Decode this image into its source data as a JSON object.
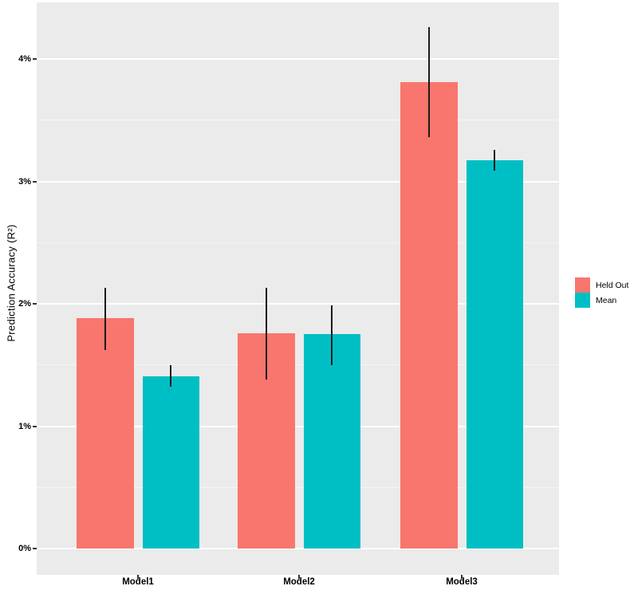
{
  "chart_data": {
    "type": "bar",
    "title": "",
    "xlabel": "",
    "ylabel": "Prediction Accuracy (R²)",
    "categories": [
      "Model1",
      "Model2",
      "Model3"
    ],
    "y_tick_labels": [
      "0%",
      "1%",
      "2%",
      "3%",
      "4%"
    ],
    "y_tick_values": [
      0,
      1,
      2,
      3,
      4
    ],
    "y_minor_values": [
      0.5,
      1.5,
      2.5,
      3.5
    ],
    "ylim": [
      0,
      4.47
    ],
    "grid": "white major and minor gridlines on gray panel",
    "legend_position": "right-center",
    "value_unit": "percent",
    "series": [
      {
        "name": "Held Out",
        "color": "#F8766D",
        "values": [
          1.88,
          1.76,
          3.81
        ],
        "error_low": [
          1.62,
          1.38,
          3.36
        ],
        "error_high": [
          2.13,
          2.13,
          4.26
        ]
      },
      {
        "name": "Mean",
        "color": "#00BFC4",
        "values": [
          1.41,
          1.75,
          3.17
        ],
        "error_low": [
          1.32,
          1.5,
          3.09
        ],
        "error_high": [
          1.5,
          1.99,
          3.26
        ]
      }
    ]
  },
  "style": {
    "background": "#FFFFFF",
    "panel_bg": "#EBEBEB",
    "grid_major_color": "#FFFFFF",
    "grid_minor_color": "#F5F5F5",
    "error_bar_color": "#1A1A1A",
    "tick_mark_color": "#333333",
    "axis_text_color": "#000000"
  }
}
